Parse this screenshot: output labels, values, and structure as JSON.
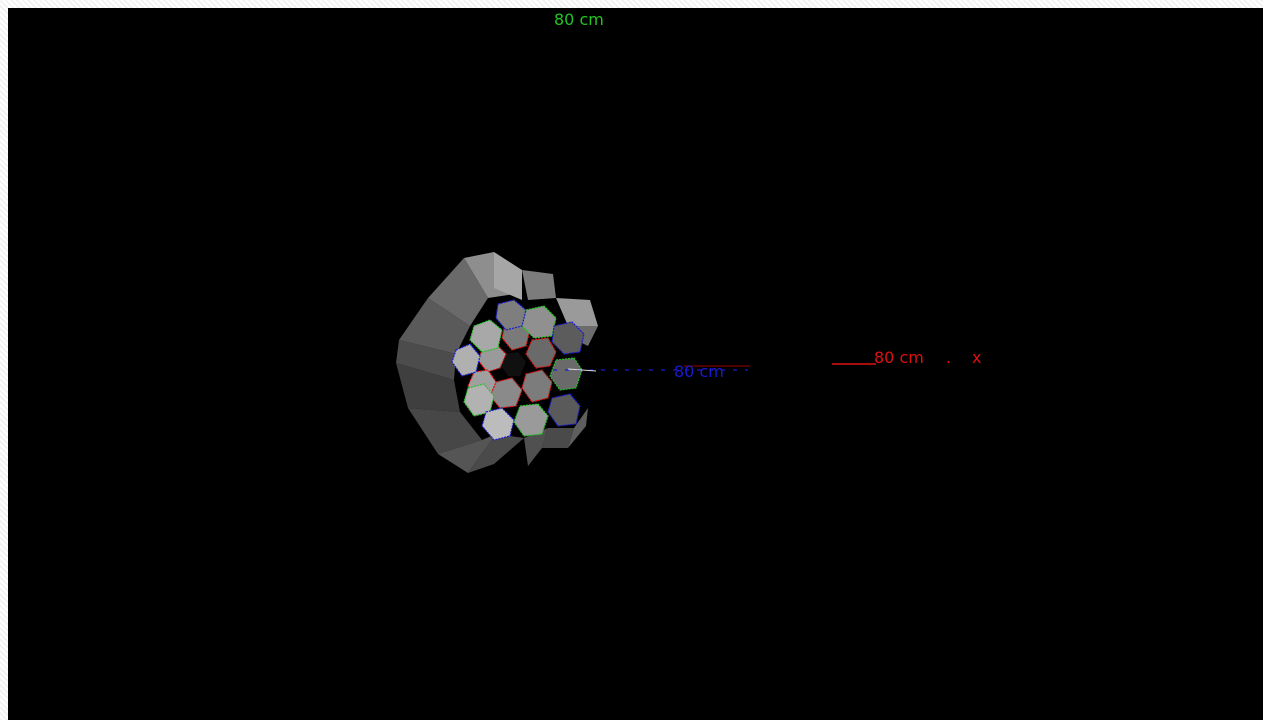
{
  "viewer": {
    "axis_colors": {
      "x": "#e01010",
      "y": "#22c422",
      "z": "#1a1ad0"
    },
    "labels": {
      "y_scale": "80 cm",
      "z_scale": "80 cm",
      "x_scale": "80 cm",
      "dot": ".",
      "x_axis": "x"
    },
    "model": {
      "description_icon": "hexagonal-detector-array-icon",
      "outline_colors": [
        "#e01010",
        "#22c422",
        "#1a1ad0"
      ],
      "face_color_light": "#b8b8b8",
      "face_color_dark": "#5a5a5a"
    }
  }
}
